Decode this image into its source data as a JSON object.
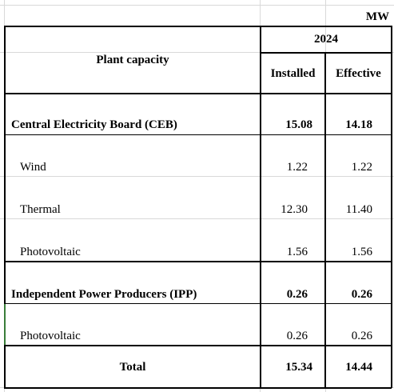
{
  "unit": "MW",
  "header": {
    "plant_capacity": "Plant capacity",
    "year": "2024",
    "installed": "Installed",
    "effective": "Effective"
  },
  "rows": [
    {
      "label": "Central Electricity Board (CEB)",
      "installed": "15.08",
      "effective": "14.18"
    },
    {
      "label": "Wind",
      "installed": "1.22",
      "effective": "1.22"
    },
    {
      "label": "Thermal",
      "installed": "12.30",
      "effective": "11.40"
    },
    {
      "label": "Photovoltaic",
      "installed": "1.56",
      "effective": "1.56"
    },
    {
      "label": "Independent Power Producers (IPP)",
      "installed": "0.26",
      "effective": "0.26"
    },
    {
      "label": "Photovoltaic",
      "installed": "0.26",
      "effective": "0.26"
    }
  ],
  "total": {
    "label": "Total",
    "installed": "15.34",
    "effective": "14.44"
  }
}
